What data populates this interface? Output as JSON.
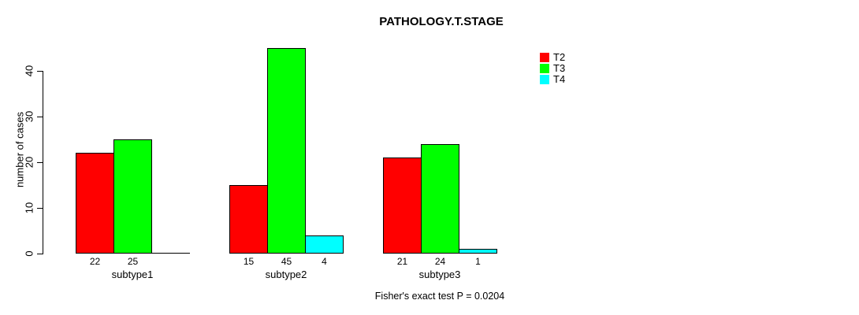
{
  "chart_data": {
    "type": "bar",
    "title": "PATHOLOGY.T.STAGE",
    "xlabel": "",
    "ylabel": "number of cases",
    "categories": [
      "subtype1",
      "subtype2",
      "subtype3"
    ],
    "series": [
      {
        "name": "T2",
        "color": "#ff0000",
        "values": [
          22,
          15,
          21
        ]
      },
      {
        "name": "T3",
        "color": "#00ff00",
        "values": [
          25,
          45,
          24
        ]
      },
      {
        "name": "T4",
        "color": "#00ffff",
        "values": [
          0,
          4,
          1
        ]
      }
    ],
    "yticks": [
      0,
      10,
      20,
      30,
      40
    ],
    "ylim": [
      0,
      45
    ],
    "grid": false,
    "legend_position": "top-right",
    "bar_value_labels_shown": true,
    "zero_values_hidden": true,
    "annotation": "Fisher's exact test P = 0.0204",
    "axis_color": "#000000",
    "background_color": "#ffffff"
  }
}
